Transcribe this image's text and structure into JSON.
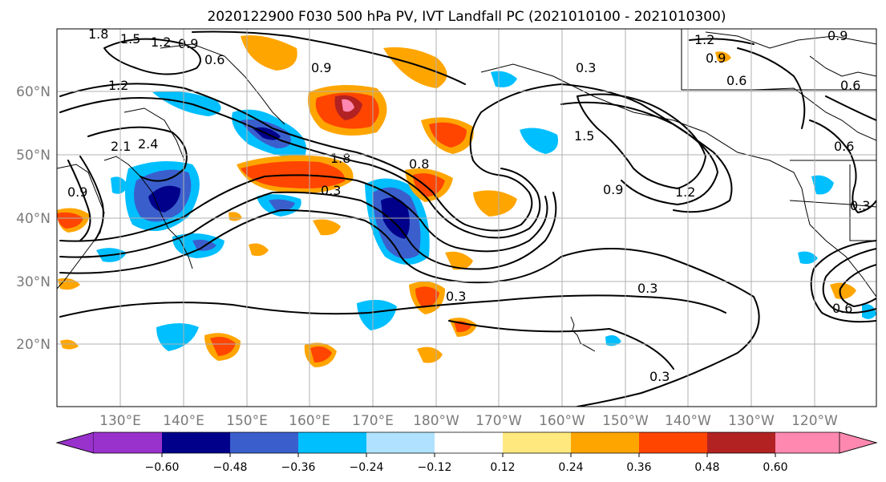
{
  "title": "2020122900 F030 500 hPa PV, IVT Landfall PC (2021010100 - 2021010300)",
  "map": {
    "lat_ticks": [
      "60°N",
      "50°N",
      "40°N",
      "30°N",
      "20°N"
    ],
    "lon_ticks": [
      "130°E",
      "140°E",
      "150°E",
      "160°E",
      "170°E",
      "180°W",
      "170°W",
      "160°W",
      "150°W",
      "140°W",
      "130°W",
      "120°W"
    ],
    "contour_labels": [
      "1.8",
      "1.5",
      "1.2",
      "0.9",
      "0.6",
      "0.9",
      "0.3",
      "1.2",
      "0.9",
      "0.6",
      "0.9",
      "1.2",
      "2.1",
      "2.4",
      "1.8",
      "0.3",
      "0.8",
      "1.5",
      "0.9",
      "1.2",
      "0.3",
      "0.3",
      "0.3",
      "0.6",
      "0.3",
      "0.6",
      "0.6",
      "0.9"
    ]
  },
  "colorbar": {
    "tick_labels": [
      "−0.60",
      "−0.48",
      "−0.36",
      "−0.24",
      "−0.12",
      "0.12",
      "0.24",
      "0.36",
      "0.48",
      "0.60"
    ],
    "colors": [
      "#9932cc",
      "#00008b",
      "#3a5fcd",
      "#00bfff",
      "#b0e2ff",
      "#ffffff",
      "#ffe97f",
      "#ffa500",
      "#ff4500",
      "#b22222",
      "#ff88b0"
    ]
  },
  "chart_data": {
    "type": "heatmap",
    "title": "2020122900 F030 500 hPa PV, IVT Landfall PC (2021010100 - 2021010300)",
    "levels": [
      -0.6,
      -0.48,
      -0.36,
      -0.24,
      -0.12,
      0.12,
      0.24,
      0.36,
      0.48,
      0.6
    ],
    "lat_range": [
      10,
      70
    ],
    "lon_range": [
      120,
      250
    ]
  }
}
